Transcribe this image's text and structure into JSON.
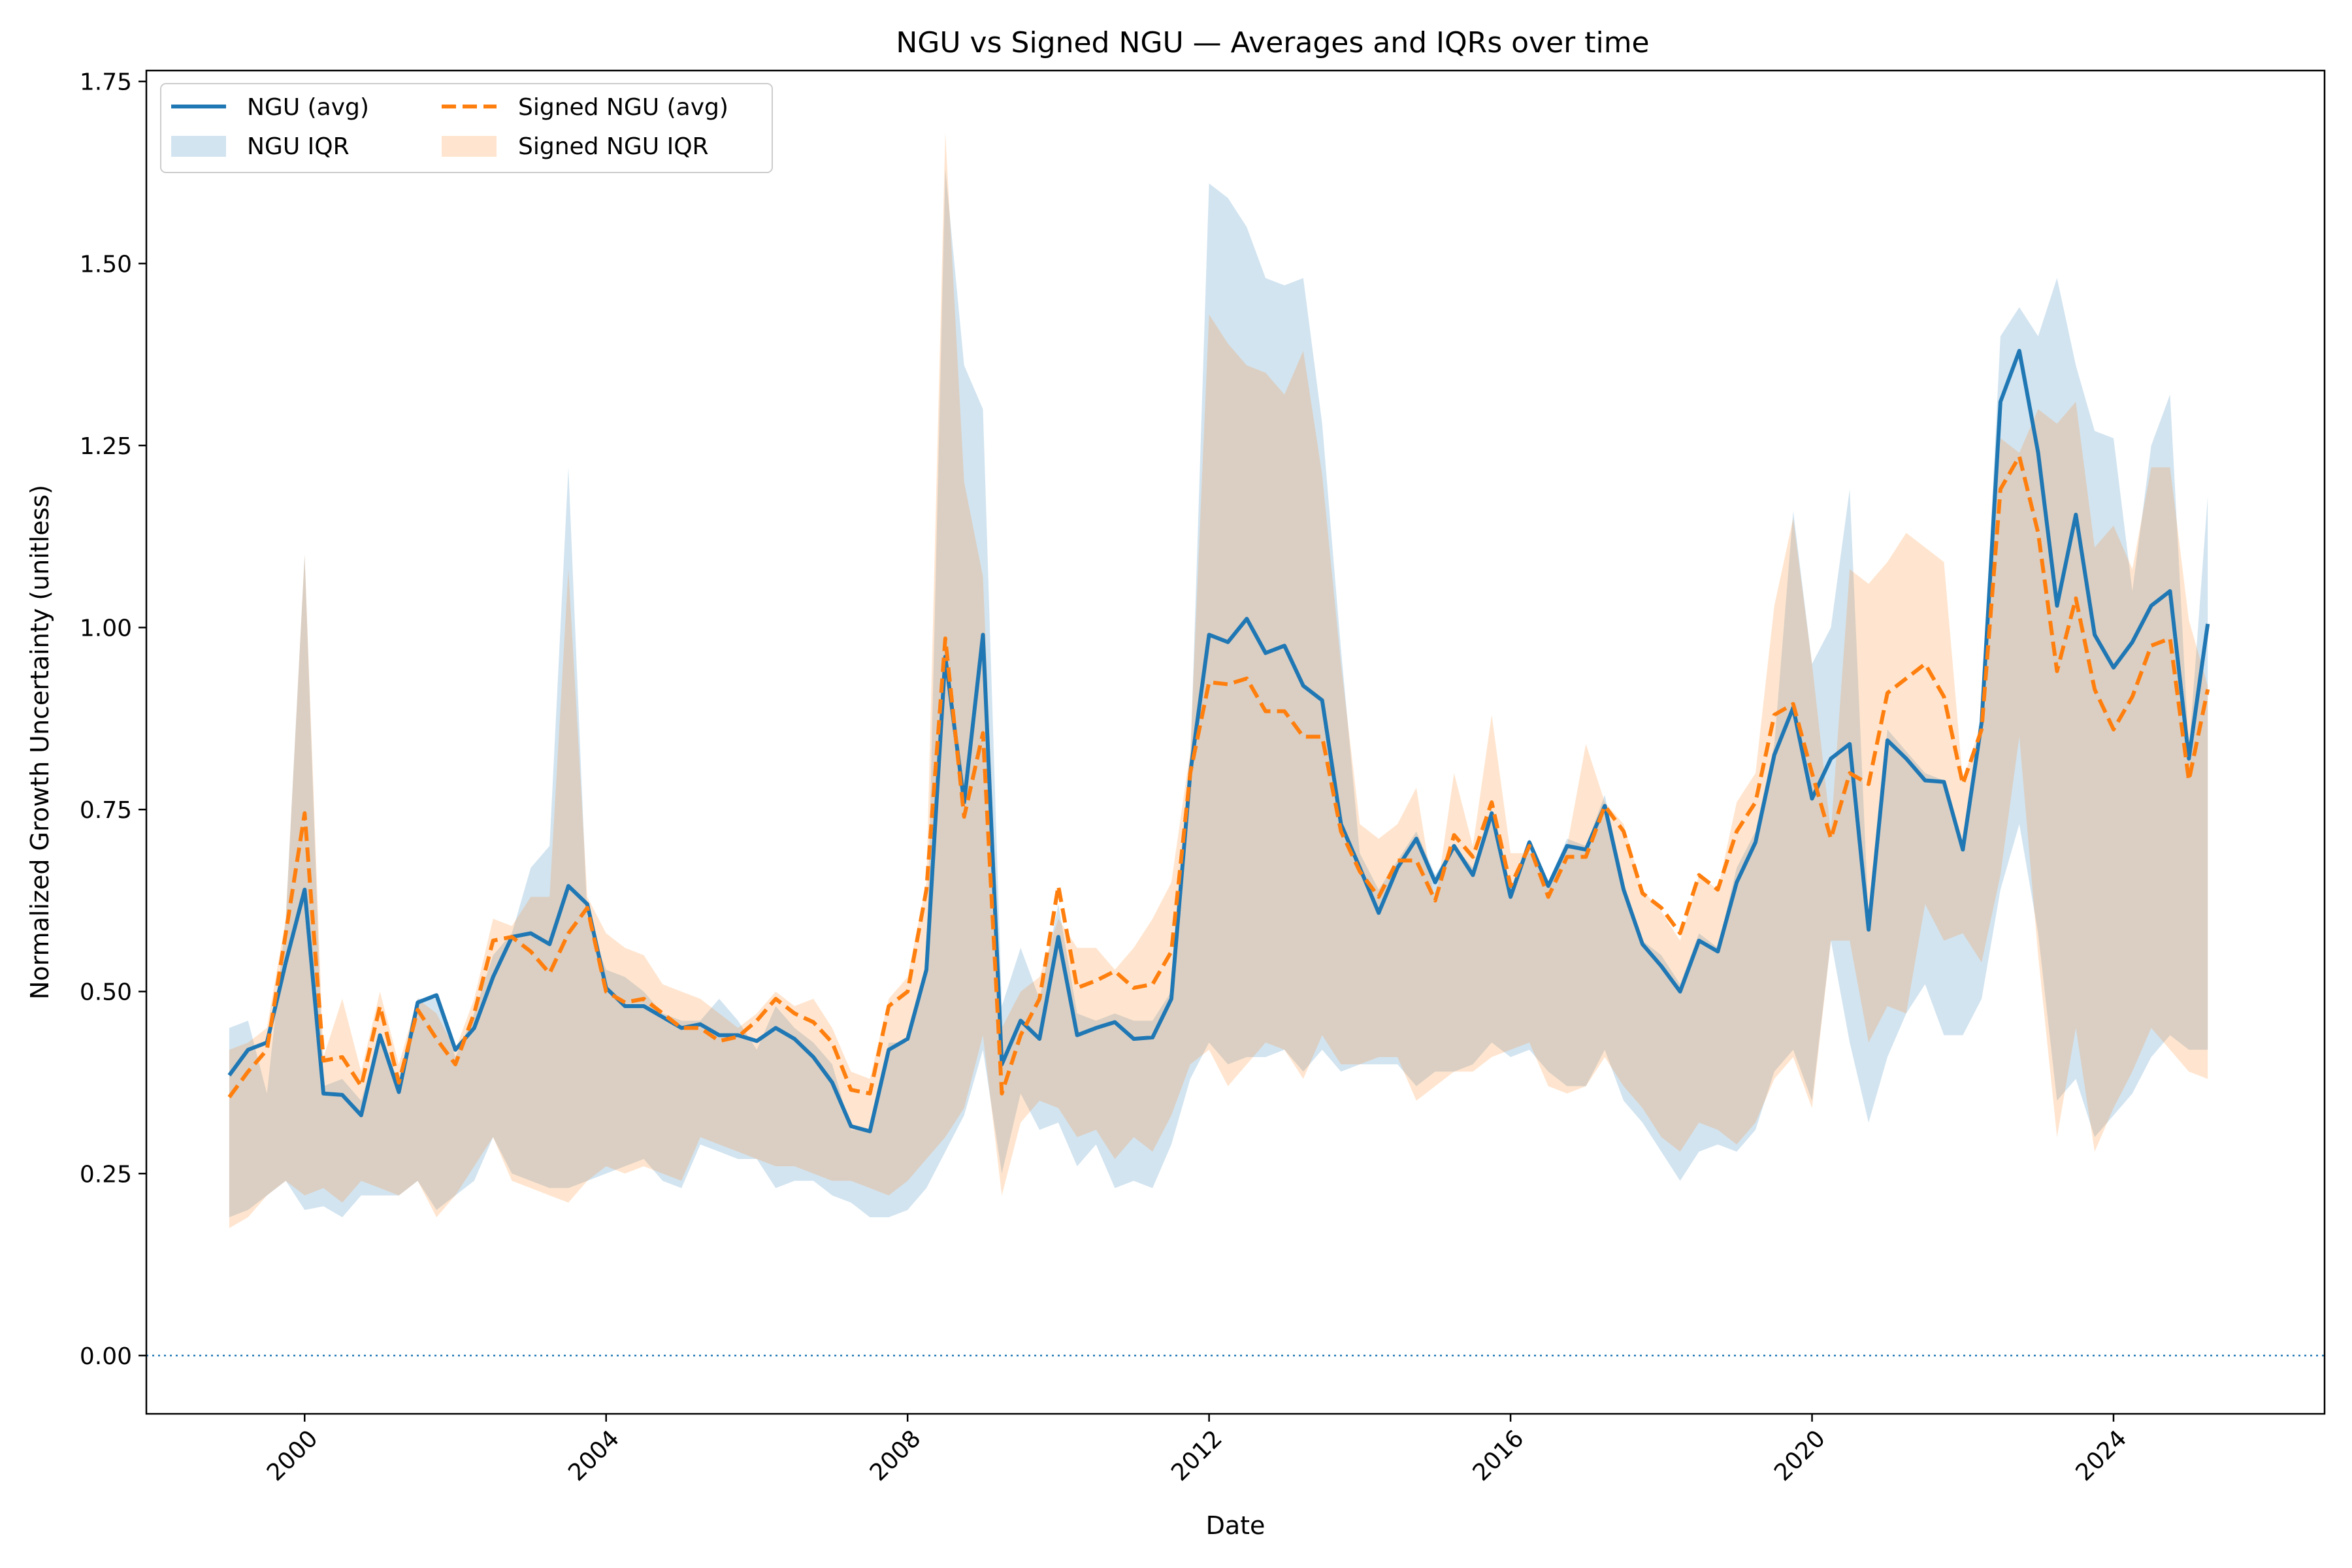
{
  "chart_data": {
    "type": "line",
    "title": "NGU vs Signed NGU — Averages and IQRs over time",
    "xlabel": "Date",
    "ylabel": "Normalized Growth Uncertainty (unitless)",
    "xlim": [
      1997.9,
      2026.8
    ],
    "ylim": [
      -0.08,
      1.765
    ],
    "x_ticks": [
      2000,
      2004,
      2008,
      2012,
      2016,
      2020,
      2024
    ],
    "x_tick_labels": [
      "2000",
      "2004",
      "2008",
      "2012",
      "2016",
      "2020",
      "2024"
    ],
    "y_ticks": [
      0,
      0.25,
      0.5,
      0.75,
      1.0,
      1.25,
      1.5,
      1.75
    ],
    "y_tick_labels": [
      "0.00",
      "0.25",
      "0.50",
      "0.75",
      "1.00",
      "1.25",
      "1.50",
      "1.75"
    ],
    "reference_line": {
      "y": 0,
      "style": "dotted"
    },
    "legend": {
      "position": "top-left",
      "entries": [
        {
          "label": "NGU (avg)",
          "kind": "line",
          "series": "ngu"
        },
        {
          "label": "NGU IQR",
          "kind": "band",
          "series": "ngu"
        },
        {
          "label": "Signed NGU (avg)",
          "kind": "dashed-line",
          "series": "signed"
        },
        {
          "label": "Signed NGU IQR",
          "kind": "band",
          "series": "signed"
        }
      ]
    },
    "x": [
      1999.0,
      1999.25,
      1999.5,
      1999.75,
      2000.0,
      2000.25,
      2000.5,
      2000.75,
      2001.0,
      2001.25,
      2001.5,
      2001.75,
      2002.0,
      2002.25,
      2002.5,
      2002.75,
      2003.0,
      2003.25,
      2003.5,
      2003.75,
      2004.0,
      2004.25,
      2004.5,
      2004.75,
      2005.0,
      2005.25,
      2005.5,
      2005.75,
      2006.0,
      2006.25,
      2006.5,
      2006.75,
      2007.0,
      2007.25,
      2007.5,
      2007.75,
      2008.0,
      2008.25,
      2008.5,
      2008.75,
      2009.0,
      2009.25,
      2009.5,
      2009.75,
      2010.0,
      2010.25,
      2010.5,
      2010.75,
      2011.0,
      2011.25,
      2011.5,
      2011.75,
      2012.0,
      2012.25,
      2012.5,
      2012.75,
      2013.0,
      2013.25,
      2013.5,
      2013.75,
      2014.0,
      2014.25,
      2014.5,
      2014.75,
      2015.0,
      2015.25,
      2015.5,
      2015.75,
      2016.0,
      2016.25,
      2016.5,
      2016.75,
      2017.0,
      2017.25,
      2017.5,
      2017.75,
      2018.0,
      2018.25,
      2018.5,
      2018.75,
      2019.0,
      2019.25,
      2019.5,
      2019.75,
      2020.0,
      2020.25,
      2020.5,
      2020.75,
      2021.0,
      2021.25,
      2021.5,
      2021.75,
      2022.0,
      2022.25,
      2022.5,
      2022.75,
      2023.0,
      2023.25,
      2023.5,
      2023.75,
      2024.0,
      2024.25,
      2024.5,
      2024.75,
      2025.0,
      2025.25
    ],
    "series": [
      {
        "name": "NGU (avg)",
        "key": "ngu",
        "color": "#1f77b4",
        "style": "solid",
        "values": [
          0.385,
          0.42,
          0.43,
          0.54,
          0.64,
          0.36,
          0.358,
          0.33,
          0.44,
          0.362,
          0.485,
          0.495,
          0.42,
          0.45,
          0.52,
          0.575,
          0.58,
          0.565,
          0.645,
          0.62,
          0.505,
          0.48,
          0.48,
          0.465,
          0.45,
          0.455,
          0.44,
          0.44,
          0.432,
          0.45,
          0.435,
          0.41,
          0.375,
          0.315,
          0.308,
          0.42,
          0.435,
          0.53,
          0.96,
          0.76,
          0.99,
          0.4,
          0.46,
          0.435,
          0.575,
          0.44,
          0.45,
          0.458,
          0.435,
          0.437,
          0.49,
          0.8,
          0.99,
          0.98,
          1.012,
          0.965,
          0.975,
          0.92,
          0.9,
          0.73,
          0.67,
          0.608,
          0.67,
          0.71,
          0.65,
          0.7,
          0.66,
          0.745,
          0.63,
          0.705,
          0.645,
          0.7,
          0.695,
          0.755,
          0.64,
          0.565,
          0.535,
          0.5,
          0.57,
          0.555,
          0.65,
          0.705,
          0.825,
          0.89,
          0.765,
          0.82,
          0.84,
          0.585,
          0.845,
          0.82,
          0.79,
          0.788,
          0.695,
          0.87,
          1.31,
          1.38,
          1.24,
          1.03,
          1.155,
          0.99,
          0.945,
          0.98,
          1.03,
          1.05,
          0.82,
          1.005
        ]
      },
      {
        "name": "Signed NGU (avg)",
        "key": "signed",
        "color": "#ff7f0e",
        "style": "dashed",
        "values": [
          0.355,
          0.39,
          0.42,
          0.58,
          0.745,
          0.405,
          0.41,
          0.37,
          0.48,
          0.375,
          0.475,
          0.435,
          0.4,
          0.47,
          0.57,
          0.575,
          0.555,
          0.525,
          0.58,
          0.615,
          0.5,
          0.485,
          0.49,
          0.47,
          0.45,
          0.45,
          0.432,
          0.438,
          0.46,
          0.49,
          0.47,
          0.458,
          0.43,
          0.365,
          0.36,
          0.48,
          0.5,
          0.64,
          0.985,
          0.74,
          0.855,
          0.36,
          0.44,
          0.49,
          0.645,
          0.505,
          0.515,
          0.528,
          0.505,
          0.51,
          0.555,
          0.8,
          0.925,
          0.922,
          0.93,
          0.885,
          0.885,
          0.85,
          0.85,
          0.72,
          0.665,
          0.63,
          0.68,
          0.68,
          0.625,
          0.715,
          0.685,
          0.76,
          0.645,
          0.7,
          0.63,
          0.685,
          0.685,
          0.755,
          0.72,
          0.635,
          0.615,
          0.58,
          0.66,
          0.64,
          0.72,
          0.76,
          0.88,
          0.895,
          0.8,
          0.71,
          0.8,
          0.785,
          0.91,
          0.93,
          0.95,
          0.905,
          0.785,
          0.86,
          1.19,
          1.235,
          1.13,
          0.94,
          1.04,
          0.915,
          0.86,
          0.905,
          0.975,
          0.985,
          0.79,
          0.915
        ]
      }
    ],
    "bands": [
      {
        "name": "NGU IQR",
        "key": "ngu",
        "color": "#1f77b4",
        "opacity": 0.2,
        "lower": [
          0.19,
          0.2,
          0.22,
          0.24,
          0.2,
          0.205,
          0.19,
          0.22,
          0.22,
          0.22,
          0.24,
          0.2,
          0.22,
          0.24,
          0.3,
          0.25,
          0.24,
          0.23,
          0.23,
          0.24,
          0.25,
          0.26,
          0.27,
          0.24,
          0.23,
          0.29,
          0.28,
          0.27,
          0.27,
          0.23,
          0.24,
          0.24,
          0.22,
          0.21,
          0.19,
          0.19,
          0.2,
          0.23,
          0.28,
          0.33,
          0.42,
          0.25,
          0.36,
          0.31,
          0.32,
          0.26,
          0.29,
          0.23,
          0.24,
          0.23,
          0.29,
          0.38,
          0.43,
          0.4,
          0.41,
          0.41,
          0.42,
          0.39,
          0.42,
          0.39,
          0.4,
          0.4,
          0.4,
          0.37,
          0.39,
          0.39,
          0.4,
          0.43,
          0.41,
          0.42,
          0.39,
          0.37,
          0.37,
          0.42,
          0.35,
          0.32,
          0.28,
          0.24,
          0.28,
          0.29,
          0.28,
          0.31,
          0.39,
          0.42,
          0.35,
          0.57,
          0.43,
          0.32,
          0.41,
          0.47,
          0.51,
          0.44,
          0.44,
          0.49,
          0.64,
          0.73,
          0.58,
          0.35,
          0.38,
          0.3,
          0.33,
          0.36,
          0.41,
          0.44,
          0.42,
          0.42
        ],
        "upper": [
          0.45,
          0.46,
          0.36,
          0.6,
          1.1,
          0.37,
          0.38,
          0.35,
          0.44,
          0.37,
          0.49,
          0.49,
          0.41,
          0.47,
          0.55,
          0.58,
          0.67,
          0.7,
          1.22,
          0.6,
          0.53,
          0.52,
          0.5,
          0.47,
          0.46,
          0.46,
          0.49,
          0.46,
          0.42,
          0.48,
          0.45,
          0.43,
          0.4,
          0.31,
          0.31,
          0.43,
          0.43,
          0.53,
          1.63,
          1.36,
          1.3,
          0.48,
          0.56,
          0.49,
          0.62,
          0.47,
          0.46,
          0.47,
          0.46,
          0.46,
          0.5,
          0.81,
          1.61,
          1.59,
          1.55,
          1.48,
          1.47,
          1.48,
          1.28,
          0.97,
          0.69,
          0.64,
          0.68,
          0.72,
          0.66,
          0.7,
          0.67,
          0.75,
          0.64,
          0.71,
          0.65,
          0.71,
          0.7,
          0.77,
          0.65,
          0.57,
          0.55,
          0.51,
          0.58,
          0.56,
          0.67,
          0.72,
          0.84,
          1.16,
          0.95,
          1.0,
          1.19,
          0.6,
          0.86,
          0.83,
          0.8,
          0.79,
          0.7,
          0.88,
          1.4,
          1.44,
          1.4,
          1.48,
          1.36,
          1.27,
          1.26,
          1.05,
          1.25,
          1.32,
          0.83,
          1.18
        ]
      },
      {
        "name": "Signed NGU IQR",
        "key": "signed",
        "color": "#ff7f0e",
        "opacity": 0.2,
        "lower": [
          0.175,
          0.19,
          0.22,
          0.24,
          0.22,
          0.23,
          0.21,
          0.24,
          0.23,
          0.22,
          0.24,
          0.19,
          0.22,
          0.26,
          0.3,
          0.24,
          0.23,
          0.22,
          0.21,
          0.24,
          0.26,
          0.25,
          0.26,
          0.25,
          0.24,
          0.3,
          0.29,
          0.28,
          0.27,
          0.26,
          0.26,
          0.25,
          0.24,
          0.24,
          0.23,
          0.22,
          0.24,
          0.27,
          0.3,
          0.34,
          0.44,
          0.22,
          0.32,
          0.35,
          0.34,
          0.3,
          0.31,
          0.27,
          0.3,
          0.28,
          0.33,
          0.4,
          0.42,
          0.37,
          0.4,
          0.43,
          0.42,
          0.38,
          0.44,
          0.4,
          0.4,
          0.41,
          0.41,
          0.35,
          0.37,
          0.39,
          0.39,
          0.41,
          0.42,
          0.43,
          0.37,
          0.36,
          0.37,
          0.41,
          0.37,
          0.34,
          0.3,
          0.28,
          0.32,
          0.31,
          0.29,
          0.32,
          0.38,
          0.41,
          0.34,
          0.57,
          0.57,
          0.43,
          0.48,
          0.47,
          0.62,
          0.57,
          0.58,
          0.54,
          0.66,
          0.85,
          0.55,
          0.3,
          0.45,
          0.28,
          0.34,
          0.39,
          0.45,
          0.42,
          0.39,
          0.38
        ],
        "upper": [
          0.42,
          0.43,
          0.45,
          0.6,
          1.1,
          0.41,
          0.49,
          0.39,
          0.5,
          0.4,
          0.49,
          0.47,
          0.42,
          0.49,
          0.6,
          0.59,
          0.63,
          0.63,
          1.08,
          0.63,
          0.58,
          0.56,
          0.55,
          0.51,
          0.5,
          0.49,
          0.47,
          0.45,
          0.47,
          0.5,
          0.48,
          0.49,
          0.45,
          0.39,
          0.38,
          0.49,
          0.52,
          0.65,
          1.68,
          1.2,
          1.07,
          0.45,
          0.5,
          0.52,
          0.6,
          0.56,
          0.56,
          0.53,
          0.56,
          0.6,
          0.65,
          0.83,
          1.43,
          1.39,
          1.36,
          1.35,
          1.32,
          1.38,
          1.21,
          0.95,
          0.73,
          0.71,
          0.73,
          0.78,
          0.62,
          0.8,
          0.7,
          0.88,
          0.69,
          0.69,
          0.65,
          0.7,
          0.84,
          0.76,
          0.73,
          0.64,
          0.61,
          0.57,
          0.66,
          0.64,
          0.76,
          0.8,
          1.03,
          1.15,
          0.95,
          0.72,
          1.08,
          1.06,
          1.09,
          1.13,
          1.11,
          1.09,
          0.79,
          0.87,
          1.26,
          1.24,
          1.3,
          1.28,
          1.31,
          1.11,
          1.14,
          1.08,
          1.22,
          1.22,
          1.01,
          0.92
        ]
      }
    ]
  }
}
